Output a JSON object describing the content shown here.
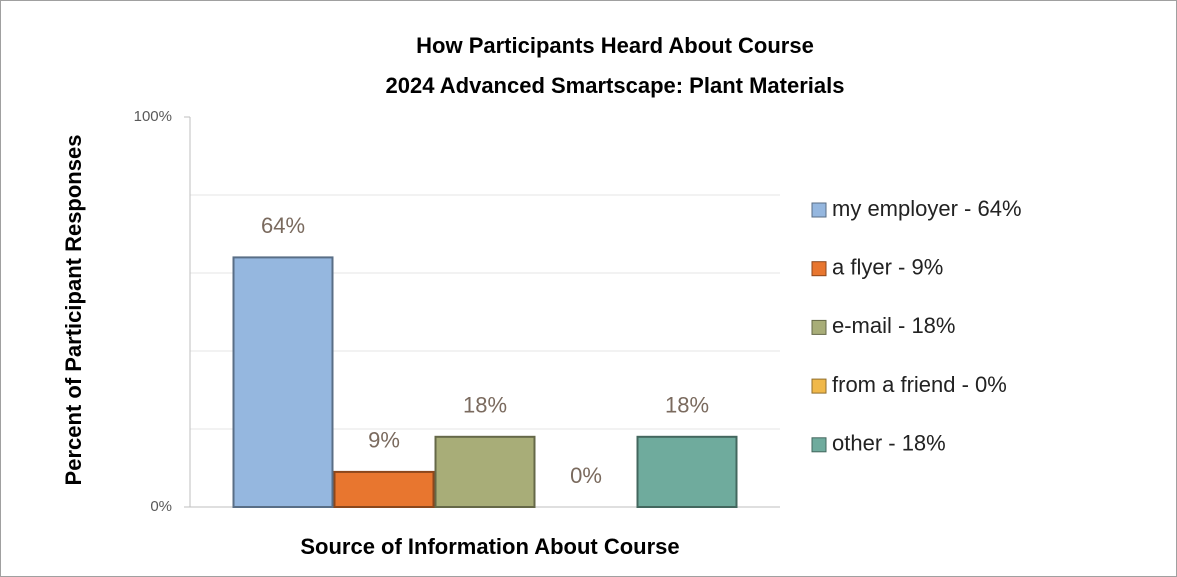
{
  "chart_data": {
    "type": "bar",
    "title": "How Participants Heard About Course",
    "subtitle": "2024 Advanced Smartscape: Plant Materials",
    "xlabel": "Source of Information About Course",
    "ylabel": "Percent of Participant Responses",
    "categories": [
      null
    ],
    "series": [
      {
        "name": "my employer - 64%",
        "color": "#95b7df",
        "values": [
          64
        ],
        "value_labels": [
          "64%"
        ]
      },
      {
        "name": "a flyer - 9%",
        "color": "#e8762f",
        "values": [
          9
        ],
        "value_labels": [
          "9%"
        ]
      },
      {
        "name": "e-mail - 18%",
        "color": "#a8ad78",
        "values": [
          18
        ],
        "value_labels": [
          "18%"
        ]
      },
      {
        "name": "from a friend - 0%",
        "color": "#f0b84a",
        "values": [
          0
        ],
        "value_labels": [
          "0%"
        ]
      },
      {
        "name": "other - 18%",
        "color": "#6fab9d",
        "values": [
          18
        ],
        "value_labels": [
          "18%"
        ]
      }
    ],
    "ylim": [
      0,
      100
    ],
    "yticks": [
      {
        "value": 0,
        "label": "0%"
      },
      {
        "value": 100,
        "label": "100%"
      }
    ],
    "minor_gridlines": [
      20,
      40,
      60,
      80
    ],
    "grid": true,
    "legend": "right"
  }
}
